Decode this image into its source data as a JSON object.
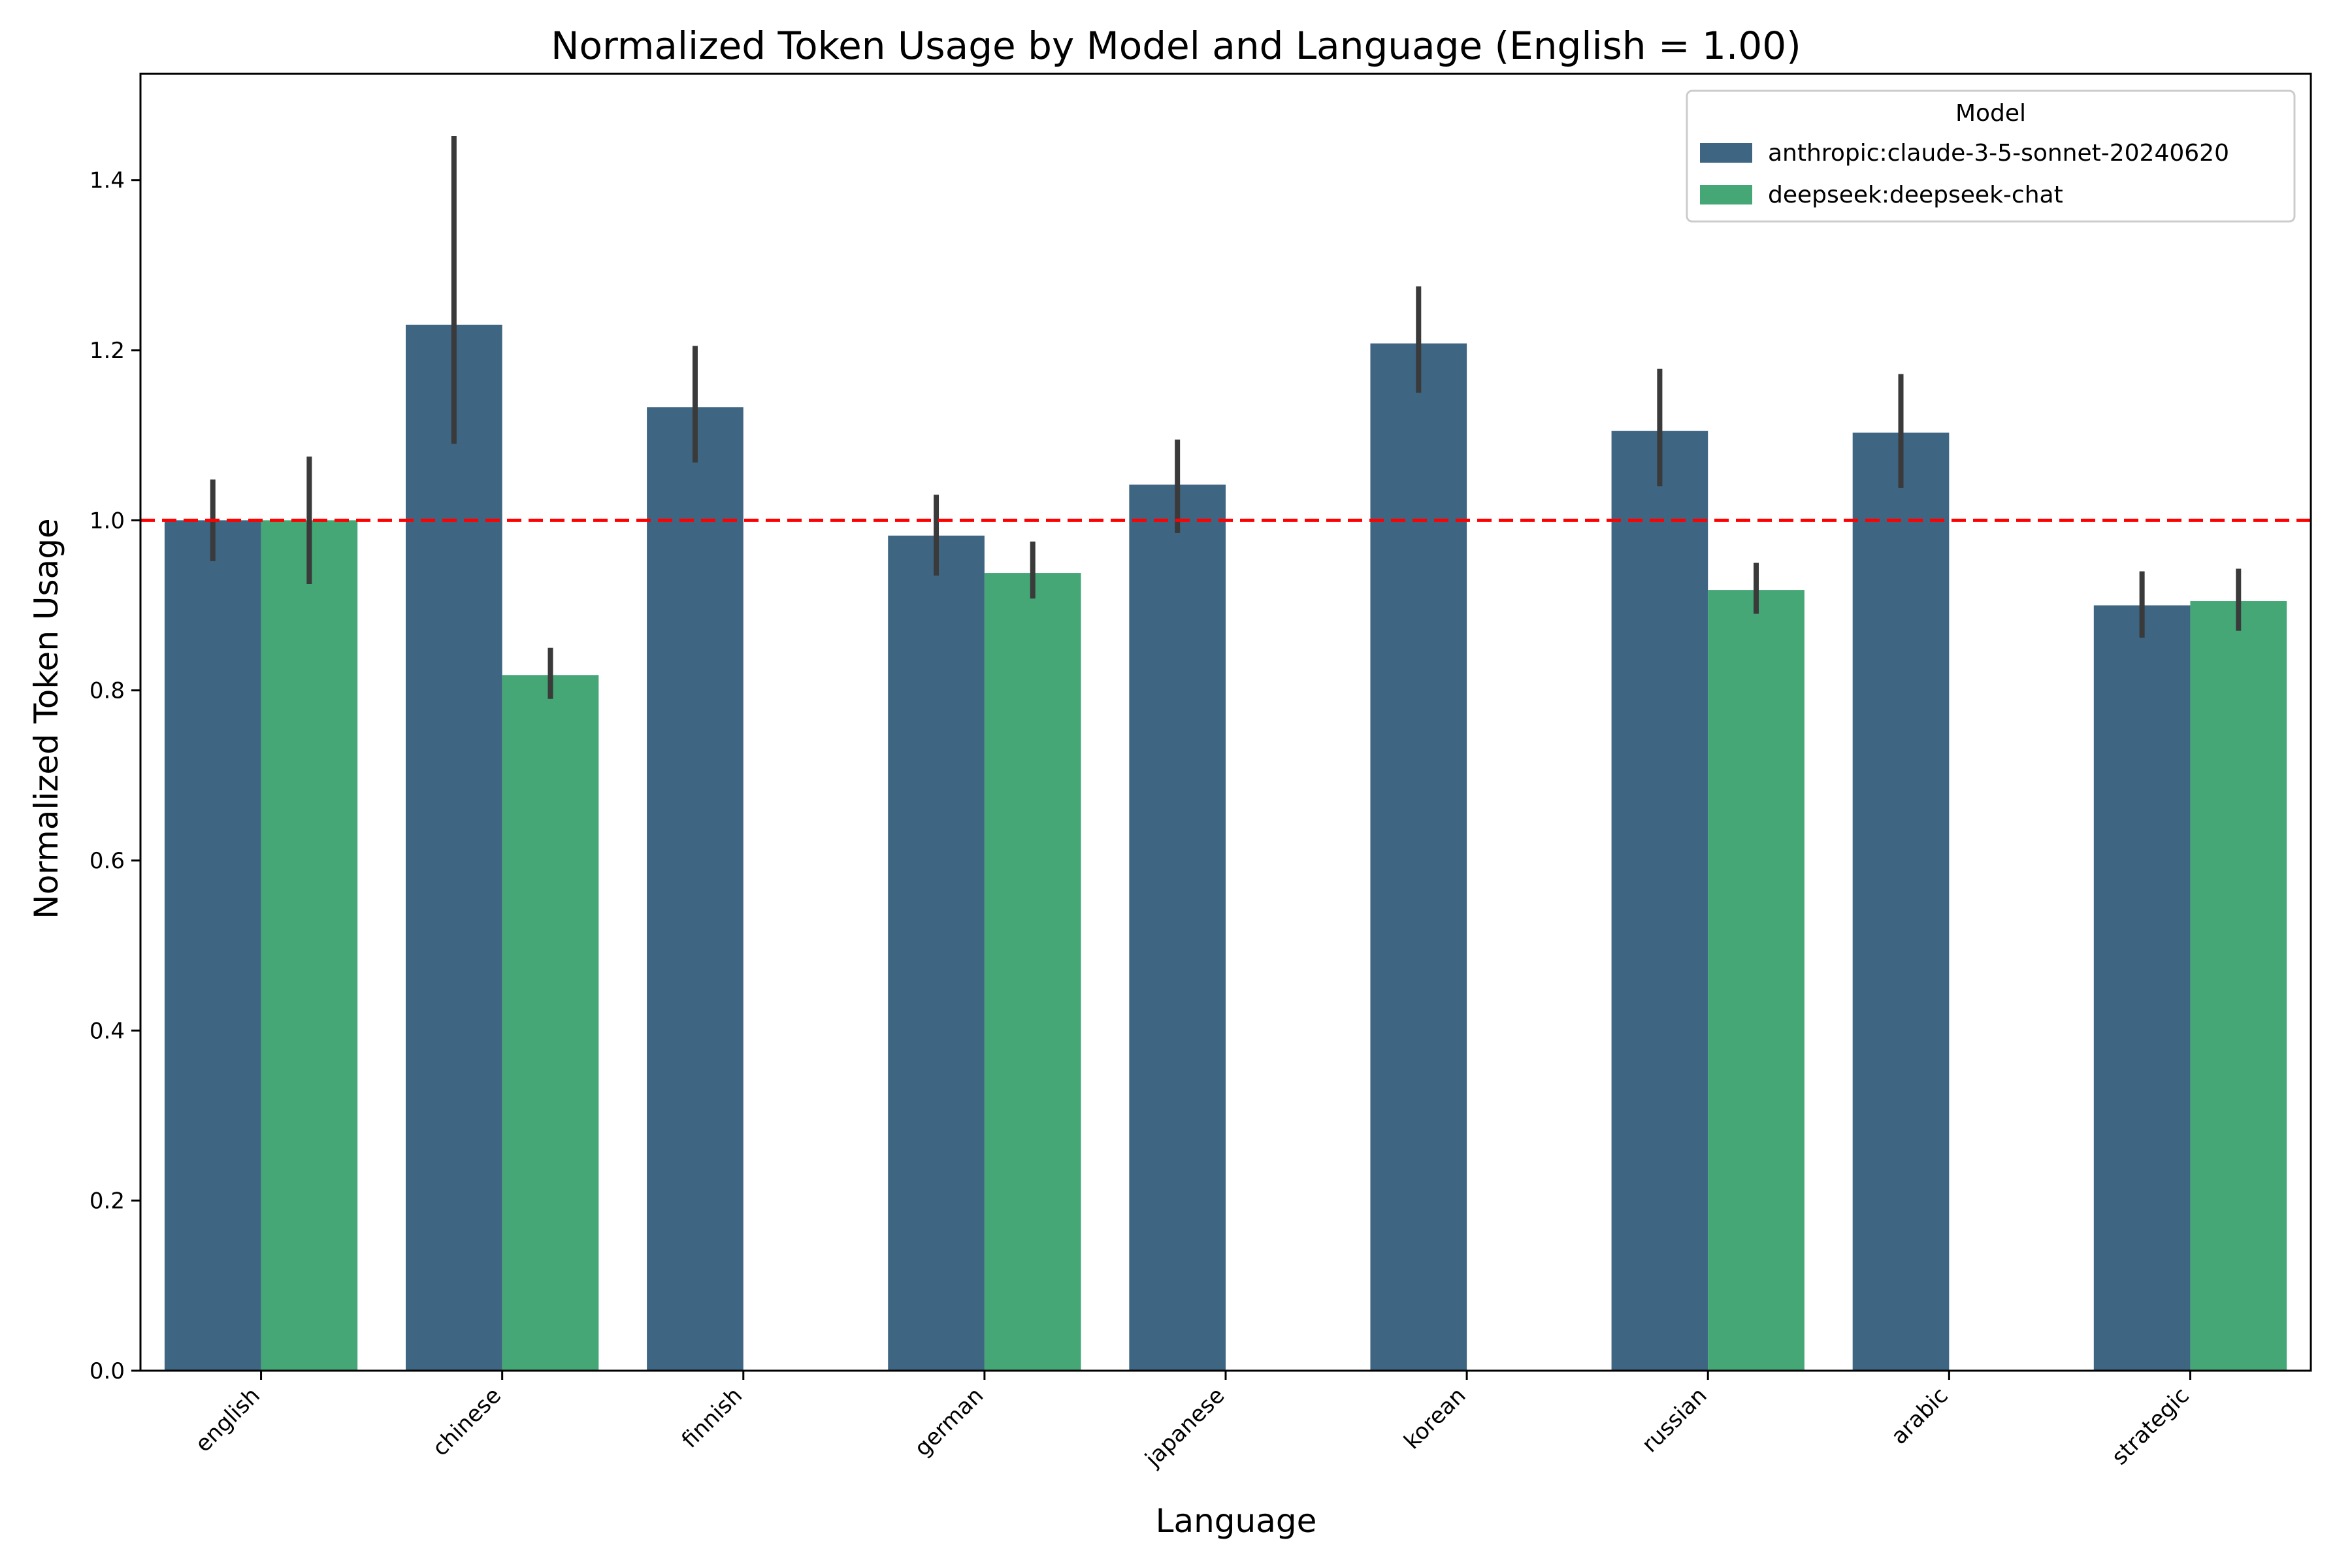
{
  "chart_data": {
    "type": "bar",
    "title": "Normalized Token Usage by Model and Language (English = 1.00)",
    "xlabel": "Language",
    "ylabel": "Normalized Token Usage",
    "ylim": [
      0,
      1.525
    ],
    "yticks": [
      0.0,
      0.2,
      0.4,
      0.6,
      0.8,
      1.0,
      1.2,
      1.4
    ],
    "ytick_labels": [
      "0.0",
      "0.2",
      "0.4",
      "0.6",
      "0.8",
      "1.0",
      "1.2",
      "1.4"
    ],
    "categories": [
      "english",
      "chinese",
      "finnish",
      "german",
      "japanese",
      "korean",
      "russian",
      "arabic",
      "strategic"
    ],
    "reference_line": {
      "value": 1.0,
      "color": "#ff0000",
      "style": "dashed"
    },
    "grid": false,
    "legend": {
      "title": "Model",
      "placement": "top-right"
    },
    "series": [
      {
        "name": "anthropic:claude-3-5-sonnet-20240620",
        "color": "#3e6582",
        "values": [
          1.0,
          1.23,
          1.133,
          0.982,
          1.042,
          1.208,
          1.105,
          1.103,
          0.9
        ],
        "error_low": [
          0.952,
          1.09,
          1.068,
          0.935,
          0.985,
          1.15,
          1.04,
          1.038,
          0.862
        ],
        "error_high": [
          1.048,
          1.452,
          1.205,
          1.03,
          1.095,
          1.275,
          1.178,
          1.172,
          0.94
        ]
      },
      {
        "name": "deepseek:deepseek-chat",
        "color": "#45a776",
        "values": [
          1.0,
          0.818,
          null,
          0.938,
          null,
          null,
          0.918,
          null,
          0.905
        ],
        "error_low": [
          0.925,
          0.79,
          null,
          0.908,
          null,
          null,
          0.89,
          null,
          0.87
        ],
        "error_high": [
          1.075,
          0.85,
          null,
          0.975,
          null,
          null,
          0.95,
          null,
          0.943
        ]
      }
    ]
  }
}
